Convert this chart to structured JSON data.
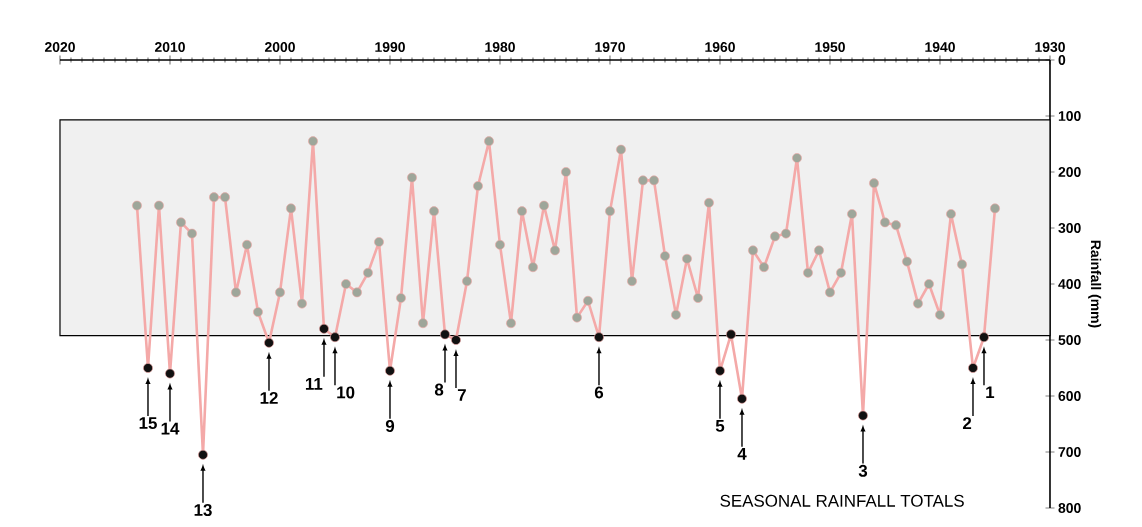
{
  "chart_data": {
    "type": "line",
    "title": "SEASONAL RAINFALL TOTALS",
    "ylabel": "Rainfall (mm)",
    "xlim": [
      2020,
      1930
    ],
    "xticks": [
      1930,
      1940,
      1950,
      1960,
      1970,
      1980,
      1990,
      2000,
      2010,
      2020
    ],
    "ylim": [
      800,
      0
    ],
    "yticks": [
      0,
      100,
      200,
      300,
      400,
      500,
      600,
      700,
      800
    ],
    "marker": "circle",
    "line_style": "solid",
    "series": [
      {
        "color": "#f4a9a8",
        "x": [
          1935,
          1936,
          1937,
          1938,
          1939,
          1940,
          1941,
          1942,
          1943,
          1944,
          1945,
          1946,
          1947,
          1948,
          1949,
          1950,
          1951,
          1952,
          1953,
          1954,
          1955,
          1956,
          1957,
          1958,
          1959,
          1960,
          1961,
          1962,
          1963,
          1964,
          1965,
          1966,
          1967,
          1968,
          1969,
          1970,
          1971,
          1972,
          1973,
          1974,
          1975,
          1976,
          1977,
          1978,
          1979,
          1980,
          1981,
          1982,
          1983,
          1984,
          1985,
          1986,
          1987,
          1988,
          1989,
          1990,
          1991,
          1992,
          1993,
          1994,
          1995,
          1996,
          1997,
          1998,
          1999,
          2000,
          2001,
          2002,
          2003,
          2004,
          2005,
          2006,
          2007,
          2008,
          2009,
          2010,
          2011,
          2012,
          2013
        ],
        "values": [
          265,
          495,
          550,
          365,
          275,
          455,
          400,
          435,
          360,
          295,
          290,
          220,
          635,
          275,
          380,
          415,
          340,
          380,
          175,
          310,
          315,
          370,
          340,
          605,
          490,
          555,
          255,
          425,
          355,
          455,
          350,
          215,
          215,
          395,
          160,
          270,
          495,
          430,
          460,
          200,
          340,
          260,
          370,
          270,
          470,
          330,
          145,
          225,
          395,
          500,
          490,
          270,
          470,
          210,
          425,
          555,
          325,
          380,
          415,
          400,
          495,
          480,
          145,
          435,
          265,
          415,
          505,
          450,
          330,
          415,
          245,
          245,
          705,
          310,
          290,
          560,
          260,
          550,
          260
        ],
        "colors": [
          "#9ea69a",
          "#111111",
          "#111111",
          "#9ea69a",
          "#9ea69a",
          "#9ea69a",
          "#9ea69a",
          "#9ea69a",
          "#9ea69a",
          "#9ea69a",
          "#9ea69a",
          "#9ea69a",
          "#111111",
          "#9ea69a",
          "#9ea69a",
          "#9ea69a",
          "#9ea69a",
          "#9ea69a",
          "#9ea69a",
          "#9ea69a",
          "#9ea69a",
          "#9ea69a",
          "#9ea69a",
          "#111111",
          "#111111",
          "#111111",
          "#9ea69a",
          "#9ea69a",
          "#9ea69a",
          "#9ea69a",
          "#9ea69a",
          "#9ea69a",
          "#9ea69a",
          "#9ea69a",
          "#9ea69a",
          "#9ea69a",
          "#111111",
          "#9ea69a",
          "#9ea69a",
          "#9ea69a",
          "#9ea69a",
          "#9ea69a",
          "#9ea69a",
          "#9ea69a",
          "#9ea69a",
          "#9ea69a",
          "#9ea69a",
          "#9ea69a",
          "#9ea69a",
          "#111111",
          "#111111",
          "#9ea69a",
          "#9ea69a",
          "#9ea69a",
          "#9ea69a",
          "#111111",
          "#9ea69a",
          "#9ea69a",
          "#9ea69a",
          "#9ea69a",
          "#111111",
          "#111111",
          "#9ea69a",
          "#9ea69a",
          "#9ea69a",
          "#9ea69a",
          "#111111",
          "#9ea69a",
          "#9ea69a",
          "#9ea69a",
          "#9ea69a",
          "#9ea69a",
          "#111111",
          "#9ea69a",
          "#9ea69a",
          "#111111",
          "#9ea69a",
          "#111111",
          "#9ea69a"
        ]
      }
    ],
    "bands": [
      {
        "axis": "y",
        "from": 107,
        "to": 492,
        "color": "#000000"
      }
    ],
    "annotations": [
      {
        "text": "1",
        "x": 1936,
        "y": 495
      },
      {
        "text": "2",
        "x": 1937,
        "y": 550
      },
      {
        "text": "3",
        "x": 1947,
        "y": 635
      },
      {
        "text": "4",
        "x": 1958,
        "y": 605
      },
      {
        "text": "5",
        "x": 1960,
        "y": 555
      },
      {
        "text": "6",
        "x": 1971,
        "y": 495
      },
      {
        "text": "7",
        "x": 1984,
        "y": 500
      },
      {
        "text": "8",
        "x": 1985,
        "y": 490
      },
      {
        "text": "9",
        "x": 1990,
        "y": 555
      },
      {
        "text": "10",
        "x": 1995,
        "y": 495
      },
      {
        "text": "11",
        "x": 1996,
        "y": 480
      },
      {
        "text": "12",
        "x": 2001,
        "y": 505
      },
      {
        "text": "13",
        "x": 2007,
        "y": 705
      },
      {
        "text": "14",
        "x": 2010,
        "y": 560
      },
      {
        "text": "15",
        "x": 2012,
        "y": 550
      }
    ]
  }
}
